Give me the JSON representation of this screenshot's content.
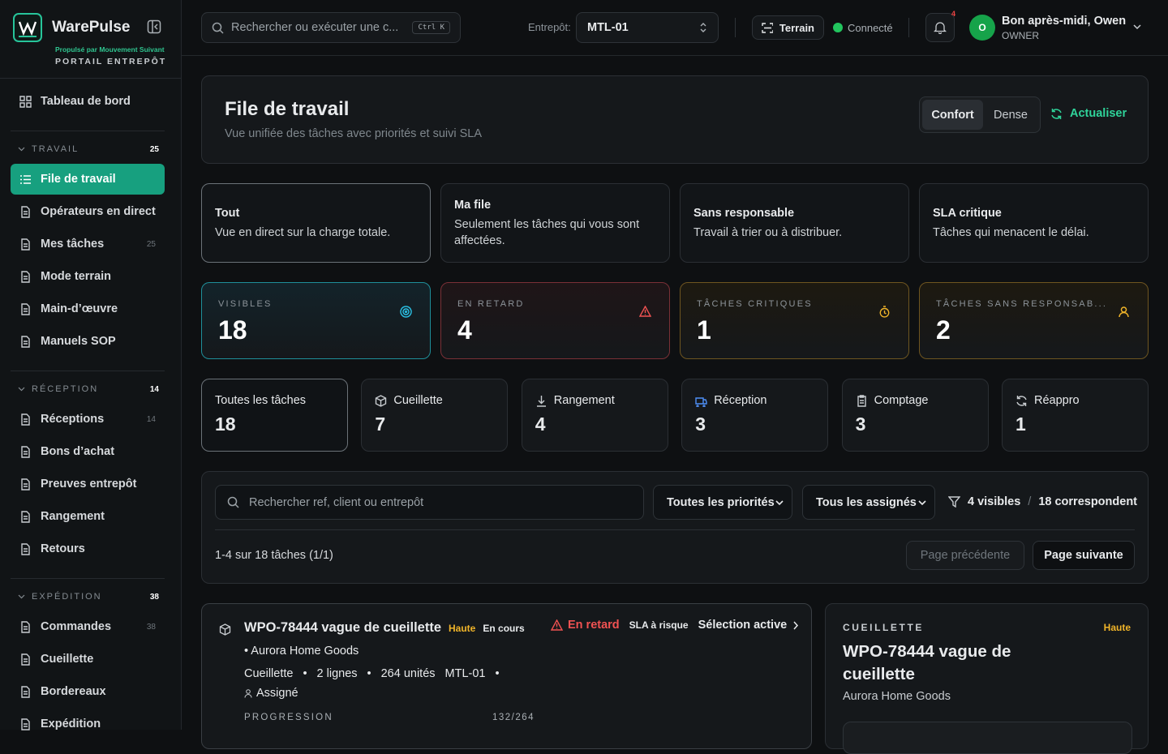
{
  "sidebar": {
    "brand": "WarePulse",
    "tagline": "Propulsé par Mouvement Suivant",
    "portal": "PORTAIL ENTREPÔT",
    "home": "Tableau de bord",
    "sections": [
      {
        "title": "TRAVAIL",
        "count": 25,
        "items": [
          {
            "label": "File de travail"
          },
          {
            "label": "Opérateurs en direct"
          },
          {
            "label": "Mes tâches",
            "count": 25
          },
          {
            "label": "Mode terrain"
          },
          {
            "label": "Main-d’œuvre"
          },
          {
            "label": "Manuels SOP"
          }
        ]
      },
      {
        "title": "RÉCEPTION",
        "count": 14,
        "items": [
          {
            "label": "Réceptions",
            "count": 14
          },
          {
            "label": "Bons d’achat"
          },
          {
            "label": "Preuves entrepôt"
          },
          {
            "label": "Rangement"
          },
          {
            "label": "Retours"
          }
        ]
      },
      {
        "title": "EXPÉDITION",
        "count": 38,
        "items": [
          {
            "label": "Commandes",
            "count": 38
          },
          {
            "label": "Cueillette"
          },
          {
            "label": "Bordereaux"
          },
          {
            "label": "Expédition"
          }
        ]
      }
    ]
  },
  "topbar": {
    "search": "Rechercher ou exécuter une c...",
    "shortcut": "Ctrl K",
    "warehouse_label": "Entrepôt:",
    "warehouse": "MTL-01",
    "field_button": "Terrain",
    "status": "Connecté",
    "notifications": 4,
    "avatar": "O",
    "greeting": "Bon après-midi, Owen",
    "role": "OWNER"
  },
  "header": {
    "title": "File de travail",
    "subtitle": "Vue unifiée des tâches avec priorités et suivi SLA",
    "modes": [
      "Confort",
      "Dense"
    ],
    "refresh": "Actualiser"
  },
  "quick_filters": [
    {
      "title": "Tout",
      "description": "Vue en direct sur la charge totale."
    },
    {
      "title": "Ma file",
      "description": "Seulement les tâches qui vous sont affectées."
    },
    {
      "title": "Sans responsable",
      "description": "Travail à trier ou à distribuer."
    },
    {
      "title": "SLA critique",
      "description": "Tâches qui menacent le délai."
    }
  ],
  "kpis": [
    {
      "label": "VISIBLES",
      "value": 18
    },
    {
      "label": "EN RETARD",
      "value": 4
    },
    {
      "label": "TÂCHES CRITIQUES",
      "value": 1
    },
    {
      "label": "TÂCHES SANS RESPONSAB...",
      "value": 2
    }
  ],
  "categories": [
    {
      "label": "Toutes les tâches",
      "count": 18
    },
    {
      "label": "Cueillette",
      "count": 7
    },
    {
      "label": "Rangement",
      "count": 4
    },
    {
      "label": "Réception",
      "count": 3
    },
    {
      "label": "Comptage",
      "count": 3
    },
    {
      "label": "Réappro",
      "count": 1
    }
  ],
  "filters": {
    "search": "Rechercher ref, client ou entrepôt",
    "priority": "Toutes les priorités",
    "assignee": "Tous les assignés",
    "visible": "4 visibles",
    "separator": "/",
    "matching": "18 correspondent",
    "range": "1-4 sur 18 tâches (1/1)",
    "previous": "Page précédente",
    "next": "Page suivante"
  },
  "task": {
    "title": "WPO-78444 vague de cueillette",
    "priority": "Haute",
    "status": "En cours",
    "late": "En retard",
    "sla": "SLA à risque",
    "action": "Sélection active",
    "customer": "• Aurora Home Goods",
    "type": "Cueillette",
    "lines": "2 lignes",
    "units": "264 unités",
    "warehouse": "MTL-01",
    "assigned": "Assigné",
    "progress_label": "PROGRESSION",
    "progress": "132/264"
  },
  "detail": {
    "category": "CUEILLETTE",
    "priority": "Haute",
    "title": "WPO-78444 vague de cueillette",
    "customer": "Aurora Home Goods"
  }
}
